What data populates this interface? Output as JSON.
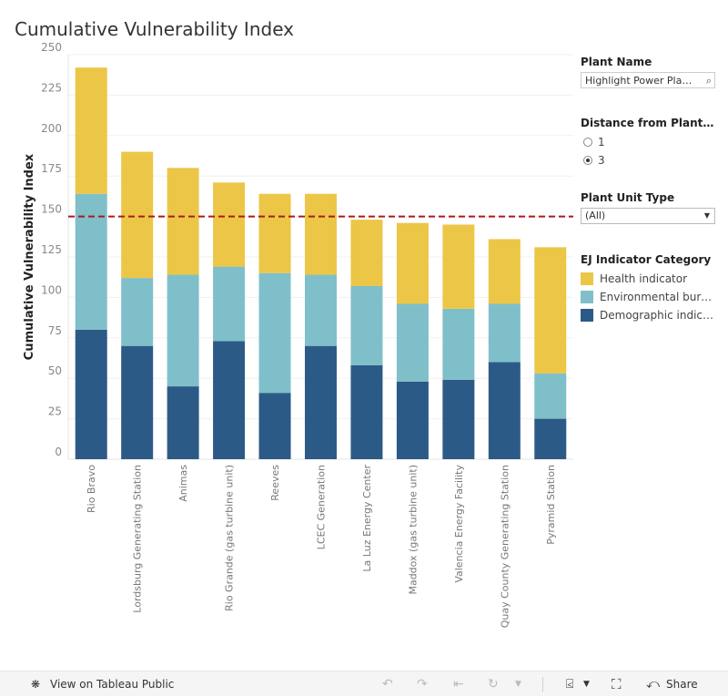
{
  "title": "Cumulative Vulnerability Index",
  "chart_data": {
    "type": "bar",
    "stacked": true,
    "title": "Cumulative Vulnerability Index",
    "ylabel": "Cumulative Vulnerability Index",
    "xlabel": "",
    "ylim": [
      0,
      250
    ],
    "yticks": [
      0,
      25,
      50,
      75,
      100,
      125,
      150,
      175,
      200,
      225,
      250
    ],
    "grid": true,
    "reference_line": {
      "value": 150,
      "color": "#a61c1c",
      "style": "dashed"
    },
    "categories": [
      "Rio Bravo",
      "Lordsburg Generating Station",
      "Animas",
      "Rio Grande (gas turbine unit)",
      "Reeves",
      "LCEC Generation",
      "La Luz Energy Center",
      "Maddox (gas turbine unit)",
      "Valencia Energy Facility",
      "Quay County Generating Station",
      "Pyramid Station"
    ],
    "series": [
      {
        "name": "Demographic indicator",
        "color": "#2c5a87",
        "values": [
          80,
          70,
          45,
          73,
          41,
          70,
          58,
          48,
          49,
          60,
          25
        ]
      },
      {
        "name": "Environmental burden",
        "color": "#7fbfca",
        "values": [
          84,
          42,
          69,
          46,
          74,
          44,
          49,
          48,
          44,
          36,
          28
        ]
      },
      {
        "name": "Health indicator",
        "color": "#ecc647",
        "values": [
          78,
          78,
          66,
          52,
          49,
          50,
          41,
          50,
          52,
          40,
          78
        ]
      }
    ]
  },
  "filters": {
    "plant_name": {
      "label": "Plant Name",
      "placeholder": "Highlight Power Plant...",
      "icon": "search-icon"
    },
    "distance": {
      "label": "Distance from Plant (...",
      "options": [
        "1",
        "3"
      ],
      "selected": "3"
    },
    "unit_type": {
      "label": "Plant Unit Type",
      "value": "(All)"
    }
  },
  "legend": {
    "title": "EJ Indicator Category",
    "items": [
      {
        "label": "Health indicator",
        "color": "#ecc647"
      },
      {
        "label": "Environmental burd...",
        "color": "#7fbfca"
      },
      {
        "label": "Demographic indica...",
        "color": "#2c5a87"
      }
    ]
  },
  "footer": {
    "view_label": "View on Tableau Public",
    "share_label": "Share"
  }
}
